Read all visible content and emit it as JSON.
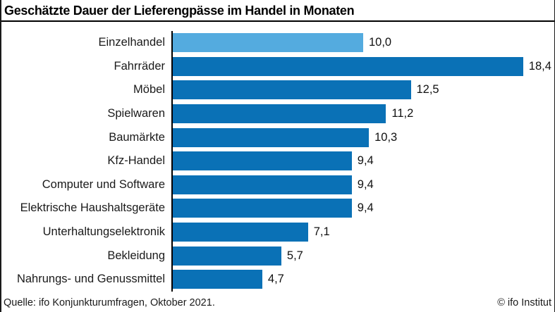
{
  "title": "Geschätzte Dauer der Lieferengpässe im Handel in Monaten",
  "chart_data": {
    "type": "bar",
    "orientation": "horizontal",
    "categories": [
      "Einzelhandel",
      "Fahrräder",
      "Möbel",
      "Spielwaren",
      "Baumärkte",
      "Kfz-Handel",
      "Computer und Software",
      "Elektrische Haushaltsgeräte",
      "Unterhaltungselektronik",
      "Bekleidung",
      "Nahrungs- und Genussmittel"
    ],
    "values": [
      10.0,
      18.4,
      12.5,
      11.2,
      10.3,
      9.4,
      9.4,
      9.4,
      7.1,
      5.7,
      4.7
    ],
    "value_labels": [
      "10,0",
      "18,4",
      "12,5",
      "11,2",
      "10,3",
      "9,4",
      "9,4",
      "9,4",
      "7,1",
      "5,7",
      "4,7"
    ],
    "xlim": [
      0,
      20
    ],
    "grid": "off",
    "legend": "none",
    "highlight_index": 0,
    "colors": {
      "highlight": "#54abdf",
      "default": "#0a71b6",
      "axis": "#000000"
    }
  },
  "footer": {
    "source": "Quelle: ifo Konjunkturumfragen, Oktober 2021.",
    "copyright": "© ifo Institut"
  }
}
